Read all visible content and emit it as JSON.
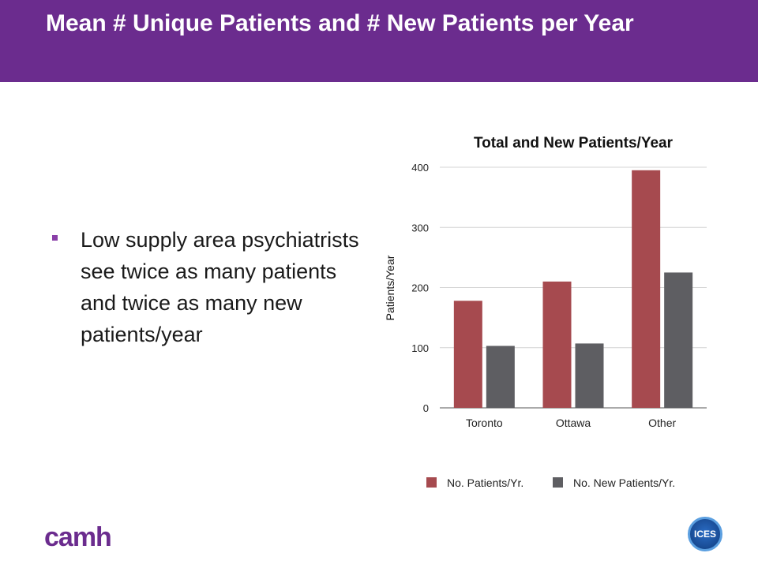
{
  "slide": {
    "title": "Mean # Unique Patients and # New Patients per Year",
    "bullet": "Low supply area psychiatrists see twice as many patients and twice as many new patients/year",
    "logo_left": "camh",
    "logo_right": "ICES"
  },
  "chart_data": {
    "type": "bar",
    "title": "Total and New Patients/Year",
    "xlabel": "",
    "ylabel": "Patients/Year",
    "categories": [
      "Toronto",
      "Ottawa",
      "Other"
    ],
    "series": [
      {
        "name": "No. Patients/Yr.",
        "values": [
          178,
          210,
          395
        ],
        "color": "#a64a4f"
      },
      {
        "name": "No. New Patients/Yr.",
        "values": [
          103,
          107,
          225
        ],
        "color": "#5e5e62"
      }
    ],
    "ylim": [
      0,
      400
    ],
    "yticks": [
      0,
      100,
      200,
      300,
      400
    ],
    "grid": true,
    "legend": "bottom"
  }
}
